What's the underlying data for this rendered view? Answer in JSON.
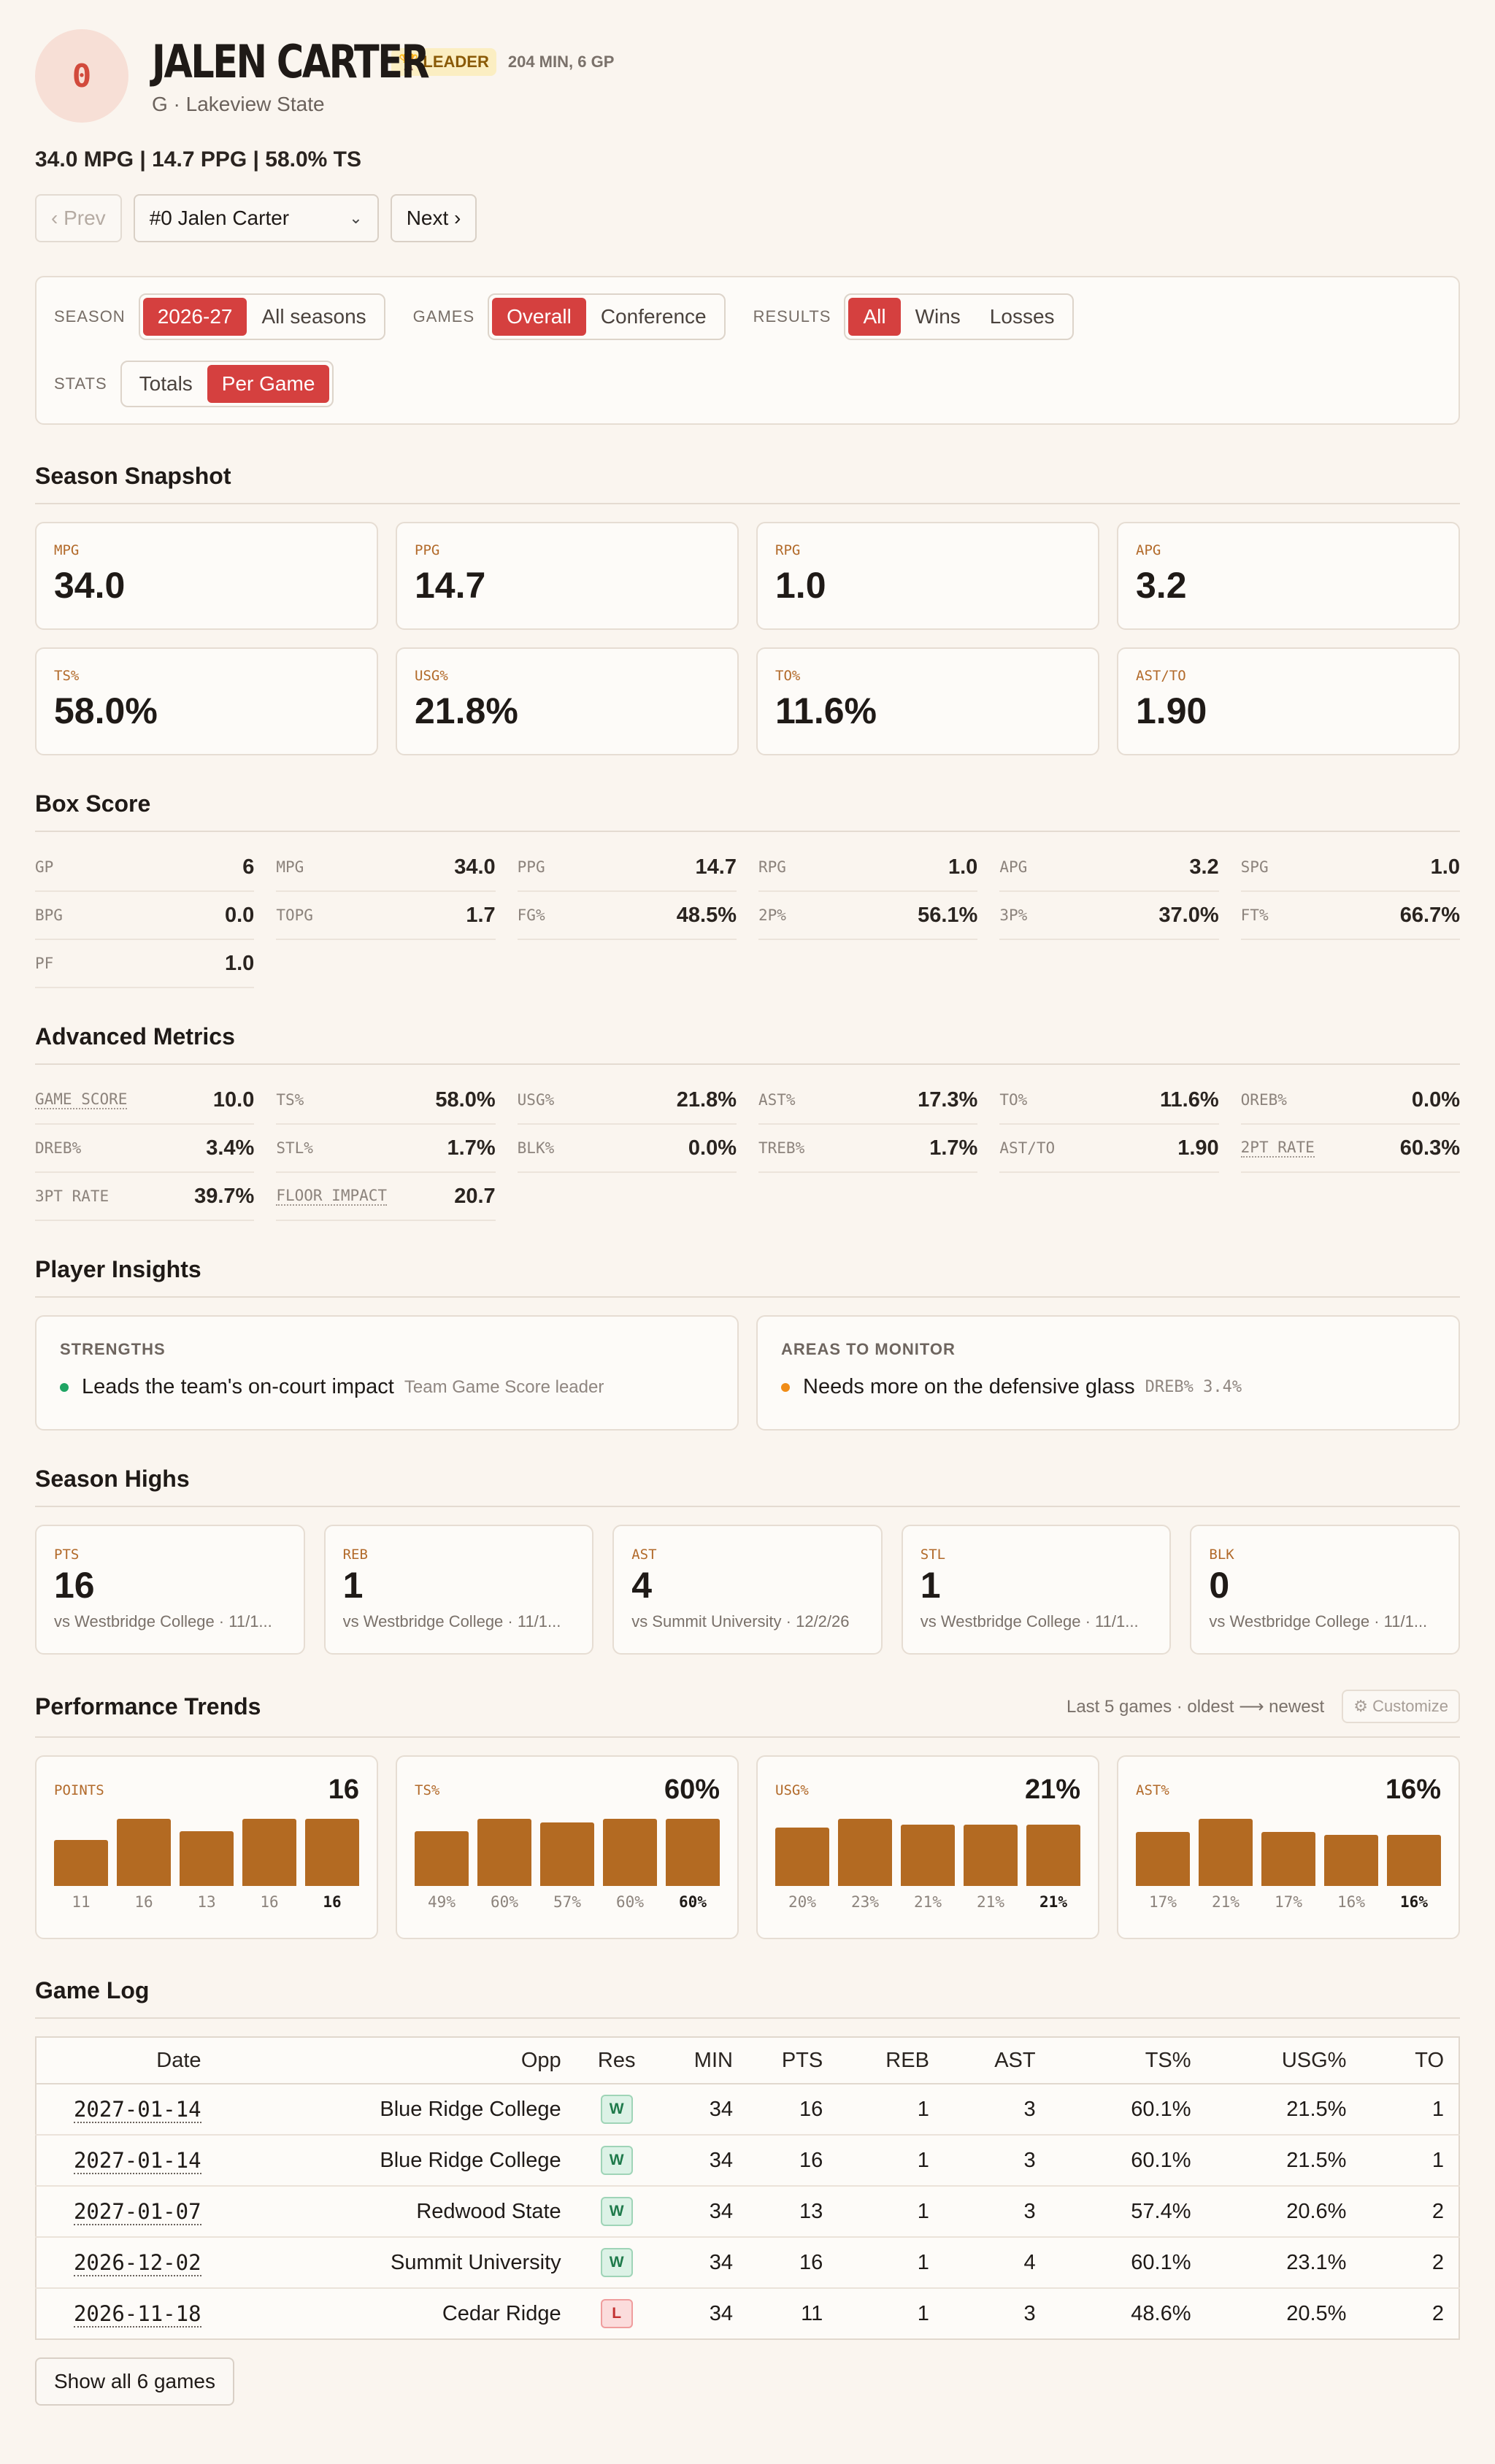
{
  "player": {
    "number": "0",
    "name": "JALEN CARTER",
    "badge": "LEADER",
    "badge_meta": "204 MIN, 6 GP",
    "subline": "G · Lakeview State",
    "statline": "34.0 MPG | 14.7 PPG | 58.0% TS"
  },
  "nav": {
    "prev": "‹ Prev",
    "selected": "#0 Jalen Carter",
    "next": "Next ›"
  },
  "filters": {
    "season": {
      "label": "SEASON",
      "options": [
        "2026-27",
        "All seasons"
      ],
      "active": "2026-27"
    },
    "games": {
      "label": "GAMES",
      "options": [
        "Overall",
        "Conference"
      ],
      "active": "Overall"
    },
    "results": {
      "label": "RESULTS",
      "options": [
        "All",
        "Wins",
        "Losses"
      ],
      "active": "All"
    },
    "stats": {
      "label": "STATS",
      "options": [
        "Totals",
        "Per Game"
      ],
      "active": "Per Game"
    }
  },
  "snapshot": {
    "title": "Season Snapshot",
    "cards": [
      {
        "label": "MPG",
        "value": "34.0"
      },
      {
        "label": "PPG",
        "value": "14.7"
      },
      {
        "label": "RPG",
        "value": "1.0"
      },
      {
        "label": "APG",
        "value": "3.2"
      },
      {
        "label": "TS%",
        "value": "58.0%"
      },
      {
        "label": "USG%",
        "value": "21.8%"
      },
      {
        "label": "TO%",
        "value": "11.6%"
      },
      {
        "label": "AST/TO",
        "value": "1.90"
      }
    ]
  },
  "box_score": {
    "title": "Box Score",
    "items": [
      {
        "k": "GP",
        "v": "6"
      },
      {
        "k": "MPG",
        "v": "34.0"
      },
      {
        "k": "PPG",
        "v": "14.7"
      },
      {
        "k": "RPG",
        "v": "1.0"
      },
      {
        "k": "APG",
        "v": "3.2"
      },
      {
        "k": "SPG",
        "v": "1.0"
      },
      {
        "k": "BPG",
        "v": "0.0"
      },
      {
        "k": "TOPG",
        "v": "1.7"
      },
      {
        "k": "FG%",
        "v": "48.5%"
      },
      {
        "k": "2P%",
        "v": "56.1%"
      },
      {
        "k": "3P%",
        "v": "37.0%"
      },
      {
        "k": "FT%",
        "v": "66.7%"
      },
      {
        "k": "PF",
        "v": "1.0"
      }
    ]
  },
  "advanced": {
    "title": "Advanced Metrics",
    "items": [
      {
        "k": "GAME SCORE",
        "v": "10.0"
      },
      {
        "k": "TS%",
        "v": "58.0%"
      },
      {
        "k": "USG%",
        "v": "21.8%"
      },
      {
        "k": "AST%",
        "v": "17.3%"
      },
      {
        "k": "TO%",
        "v": "11.6%"
      },
      {
        "k": "OREB%",
        "v": "0.0%"
      },
      {
        "k": "DREB%",
        "v": "3.4%"
      },
      {
        "k": "STL%",
        "v": "1.7%"
      },
      {
        "k": "BLK%",
        "v": "0.0%"
      },
      {
        "k": "TREB%",
        "v": "1.7%"
      },
      {
        "k": "AST/TO",
        "v": "1.90"
      },
      {
        "k": "2PT RATE",
        "v": "60.3%"
      },
      {
        "k": "3PT RATE",
        "v": "39.7%"
      },
      {
        "k": "FLOOR IMPACT",
        "v": "20.7"
      }
    ]
  },
  "insights": {
    "title": "Player Insights",
    "strengths": {
      "head": "STRENGTHS",
      "text": "Leads the team's on-court impact",
      "sub": "Team Game Score leader",
      "color": "#1fa463"
    },
    "monitor": {
      "head": "AREAS TO MONITOR",
      "text": "Needs more on the defensive glass",
      "sub": "DREB% 3.4%",
      "color": "#f08c17"
    }
  },
  "highs": {
    "title": "Season Highs",
    "cards": [
      {
        "label": "PTS",
        "value": "16",
        "ctx": "vs Westbridge College · 11/1..."
      },
      {
        "label": "REB",
        "value": "1",
        "ctx": "vs Westbridge College · 11/1..."
      },
      {
        "label": "AST",
        "value": "4",
        "ctx": "vs Summit University · 12/2/26"
      },
      {
        "label": "STL",
        "value": "1",
        "ctx": "vs Westbridge College · 11/1..."
      },
      {
        "label": "BLK",
        "value": "0",
        "ctx": "vs Westbridge College · 11/1..."
      }
    ]
  },
  "trends": {
    "title": "Performance Trends",
    "note": "Last 5 games · oldest ⟶ newest",
    "customize": "⚙ Customize",
    "cards": [
      {
        "label": "POINTS",
        "big": "16",
        "values": [
          11,
          16,
          13,
          16,
          16
        ],
        "labels": [
          "11",
          "16",
          "13",
          "16",
          "16"
        ]
      },
      {
        "label": "TS%",
        "big": "60%",
        "values": [
          49,
          60,
          57,
          60,
          60
        ],
        "labels": [
          "49%",
          "60%",
          "57%",
          "60%",
          "60%"
        ]
      },
      {
        "label": "USG%",
        "big": "21%",
        "values": [
          20,
          23,
          21,
          21,
          21
        ],
        "labels": [
          "20%",
          "23%",
          "21%",
          "21%",
          "21%"
        ]
      },
      {
        "label": "AST%",
        "big": "16%",
        "values": [
          17,
          21,
          17,
          16,
          16
        ],
        "labels": [
          "17%",
          "21%",
          "17%",
          "16%",
          "16%"
        ]
      }
    ]
  },
  "game_log": {
    "title": "Game Log",
    "headers": [
      "Date",
      "Opp",
      "Res",
      "MIN",
      "PTS",
      "REB",
      "AST",
      "TS%",
      "USG%",
      "TO"
    ],
    "rows": [
      {
        "date": "2027-01-14",
        "opp": "Blue Ridge College",
        "res": "W",
        "min": "34",
        "pts": "16",
        "reb": "1",
        "ast": "3",
        "ts": "60.1%",
        "usg": "21.5%",
        "to": "1"
      },
      {
        "date": "2027-01-14",
        "opp": "Blue Ridge College",
        "res": "W",
        "min": "34",
        "pts": "16",
        "reb": "1",
        "ast": "3",
        "ts": "60.1%",
        "usg": "21.5%",
        "to": "1"
      },
      {
        "date": "2027-01-07",
        "opp": "Redwood State",
        "res": "W",
        "min": "34",
        "pts": "13",
        "reb": "1",
        "ast": "3",
        "ts": "57.4%",
        "usg": "20.6%",
        "to": "2"
      },
      {
        "date": "2026-12-02",
        "opp": "Summit University",
        "res": "W",
        "min": "34",
        "pts": "16",
        "reb": "1",
        "ast": "4",
        "ts": "60.1%",
        "usg": "23.1%",
        "to": "2"
      },
      {
        "date": "2026-11-18",
        "opp": "Cedar Ridge",
        "res": "L",
        "min": "34",
        "pts": "11",
        "reb": "1",
        "ast": "3",
        "ts": "48.6%",
        "usg": "20.5%",
        "to": "2"
      }
    ],
    "show_all": "Show all 6 games"
  }
}
